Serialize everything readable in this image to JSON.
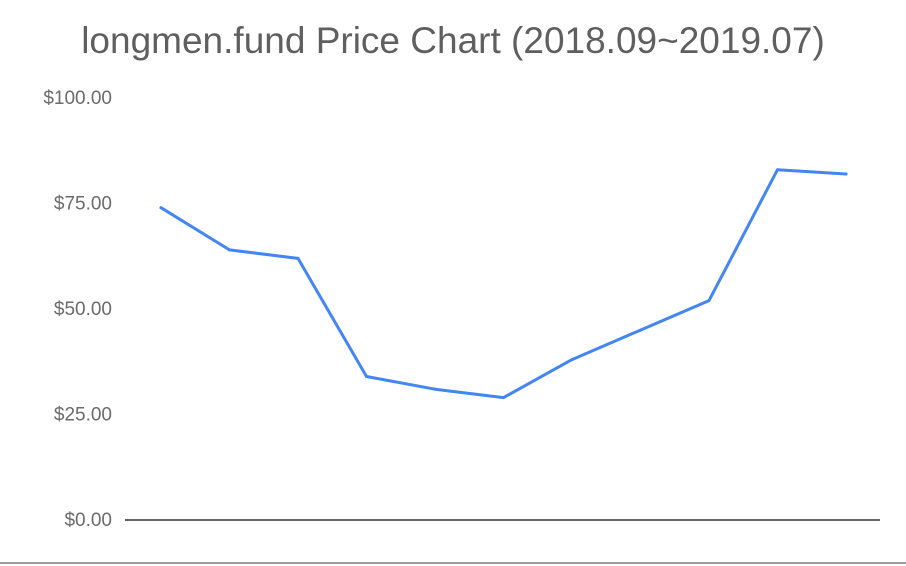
{
  "chart_data": {
    "type": "line",
    "title": "longmen.fund Price Chart (2018.09~2019.07)",
    "xlabel": "",
    "ylabel": "",
    "ylim": [
      0,
      100
    ],
    "y_ticks": [
      {
        "value": 0,
        "label": "$0.00"
      },
      {
        "value": 25,
        "label": "$25.00"
      },
      {
        "value": 50,
        "label": "$50.00"
      },
      {
        "value": 75,
        "label": "$75.00"
      },
      {
        "value": 100,
        "label": "$100.00"
      }
    ],
    "grid": false,
    "legend": "none",
    "series": [
      {
        "color": "#4285f4",
        "values": [
          74,
          64,
          62,
          34,
          31,
          29,
          38,
          45,
          52,
          83,
          82
        ]
      }
    ]
  },
  "colors": {
    "line": "#4285f4",
    "tick_text": "#6b6b6b",
    "title_text": "#5f5f5f",
    "axis": "#333333"
  }
}
